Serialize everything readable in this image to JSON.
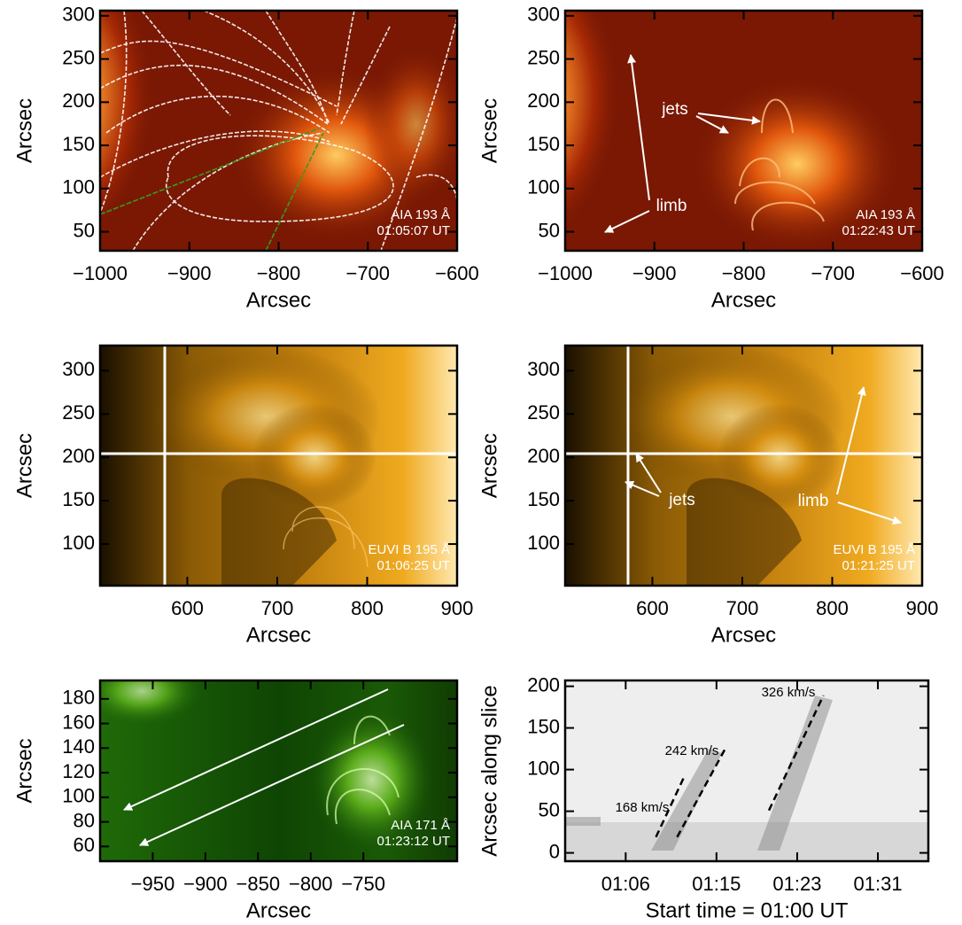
{
  "chart_data": [
    {
      "type": "image",
      "xlabel": "Arcsec",
      "ylabel": "Arcsec",
      "xlim": [
        -1000,
        -600
      ],
      "ylim": [
        28,
        306
      ],
      "xticks": [
        {
          "value": -1000,
          "label": "−1000"
        },
        {
          "value": -900,
          "label": "−900"
        },
        {
          "value": -800,
          "label": "−800"
        },
        {
          "value": -700,
          "label": "−700"
        },
        {
          "value": -600,
          "label": "−600"
        }
      ],
      "yticks": [
        50,
        100,
        150,
        200,
        250,
        300
      ],
      "instrument": "AIA 193 Å",
      "time": "01:05:07 UT"
    },
    {
      "type": "image",
      "xlabel": "Arcsec",
      "ylabel": "Arcsec",
      "xlim": [
        -1000,
        -600
      ],
      "ylim": [
        28,
        306
      ],
      "xticks": [
        {
          "value": -1000,
          "label": "−1000"
        },
        {
          "value": -900,
          "label": "−900"
        },
        {
          "value": -800,
          "label": "−800"
        },
        {
          "value": -700,
          "label": "−700"
        },
        {
          "value": -600,
          "label": "−600"
        }
      ],
      "yticks": [
        50,
        100,
        150,
        200,
        250,
        300
      ],
      "instrument": "AIA 193 Å",
      "time": "01:22:43 UT",
      "annotations": [
        "jets",
        "limb"
      ]
    },
    {
      "type": "image",
      "xlabel": "Arcsec",
      "ylabel": "Arcsec",
      "xlim": [
        503,
        900
      ],
      "ylim": [
        52,
        329
      ],
      "xticks": [
        600,
        700,
        800,
        900
      ],
      "yticks": [
        100,
        150,
        200,
        250,
        300
      ],
      "instrument": "EUVI B 195 Å",
      "time": "01:06:25 UT"
    },
    {
      "type": "image",
      "xlabel": "Arcsec",
      "ylabel": "Arcsec",
      "xlim": [
        503,
        900
      ],
      "ylim": [
        52,
        329
      ],
      "xticks": [
        600,
        700,
        800,
        900
      ],
      "yticks": [
        100,
        150,
        200,
        250,
        300
      ],
      "instrument": "EUVI B 195 Å",
      "time": "01:21:25 UT",
      "annotations": [
        "jets",
        "limb"
      ]
    },
    {
      "type": "image",
      "xlabel": "Arcsec",
      "ylabel": "Arcsec",
      "xlim": [
        -1000,
        -661
      ],
      "ylim": [
        48,
        195
      ],
      "xticks": [
        {
          "value": -950,
          "label": "−950"
        },
        {
          "value": -900,
          "label": "−900"
        },
        {
          "value": -850,
          "label": "−850"
        },
        {
          "value": -800,
          "label": "−800"
        },
        {
          "value": -750,
          "label": "−750"
        }
      ],
      "yticks": [
        60,
        80,
        100,
        120,
        140,
        160,
        180
      ],
      "instrument": "AIA 171 Å",
      "time": "01:23:12 UT"
    },
    {
      "type": "time_distance",
      "xlabel": "Start time = 01:00 UT",
      "ylabel": "Arcsec along slice",
      "xlim": [
        0,
        36
      ],
      "ylim": [
        -10,
        207
      ],
      "xticks": [
        {
          "value": 6,
          "label": "01:06"
        },
        {
          "value": 15,
          "label": "01:15"
        },
        {
          "value": 23,
          "label": "01:23"
        },
        {
          "value": 31,
          "label": "01:31"
        }
      ],
      "yticks": [
        0,
        50,
        100,
        150,
        200
      ],
      "fits": [
        {
          "label": "168 km/s",
          "x": [
            9.0,
            11.9
          ],
          "y": [
            19,
            94
          ]
        },
        {
          "label": "242 km/s",
          "x": [
            11.1,
            16.0
          ],
          "y": [
            19,
            128
          ]
        },
        {
          "label": "326 km/s",
          "x": [
            20.2,
            25.6
          ],
          "y": [
            51,
            189
          ]
        }
      ]
    }
  ]
}
